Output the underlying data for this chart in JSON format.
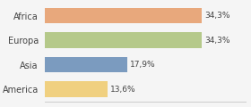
{
  "categories": [
    "Africa",
    "Europa",
    "Asia",
    "America"
  ],
  "values": [
    34.3,
    34.3,
    17.9,
    13.6
  ],
  "labels": [
    "34,3%",
    "34,3%",
    "17,9%",
    "13,6%"
  ],
  "bar_colors": [
    "#e8a87c",
    "#b5c98a",
    "#7b9bbf",
    "#f0d080"
  ],
  "background_color": "#f5f5f5",
  "xlim": [
    0,
    44
  ],
  "bar_height": 0.65,
  "label_fontsize": 6.5,
  "tick_fontsize": 7.0
}
